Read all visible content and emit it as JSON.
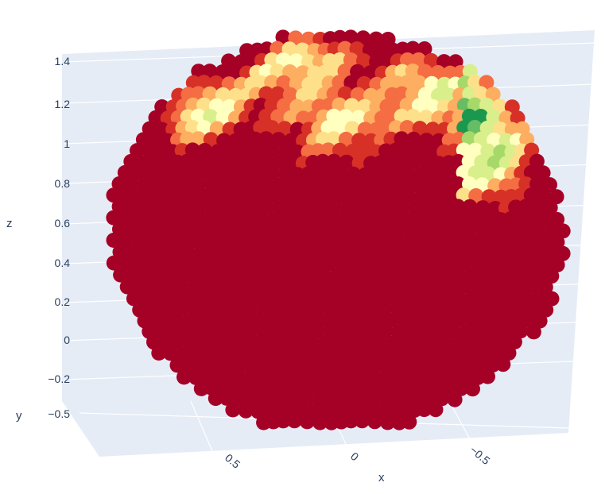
{
  "chart_data": {
    "type": "scatter3d",
    "title": "",
    "axes": {
      "x": {
        "title": "x",
        "tick_labels": [
          "0.5",
          "0",
          "−0.5"
        ]
      },
      "y": {
        "title": "y",
        "tick_labels": [
          "−0.5"
        ]
      },
      "z": {
        "title": "z",
        "tick_labels": [
          "−0.2",
          "0",
          "0.2",
          "0.4",
          "0.6",
          "0.8",
          "1",
          "1.2",
          "1.4"
        ],
        "range": [
          -0.2,
          1.4
        ]
      }
    },
    "colorscale": "RdYlGn",
    "colors": {
      "background_pane": "#e5ecf6",
      "grid": "#ffffff",
      "scale": [
        "#a50026",
        "#d73027",
        "#f46d43",
        "#fdae61",
        "#fee08b",
        "#ffffbf",
        "#d9ef8b",
        "#a6d96a",
        "#66bd63",
        "#1a9850",
        "#006837"
      ]
    },
    "grid": true,
    "legend": "none",
    "marker": "circle"
  }
}
